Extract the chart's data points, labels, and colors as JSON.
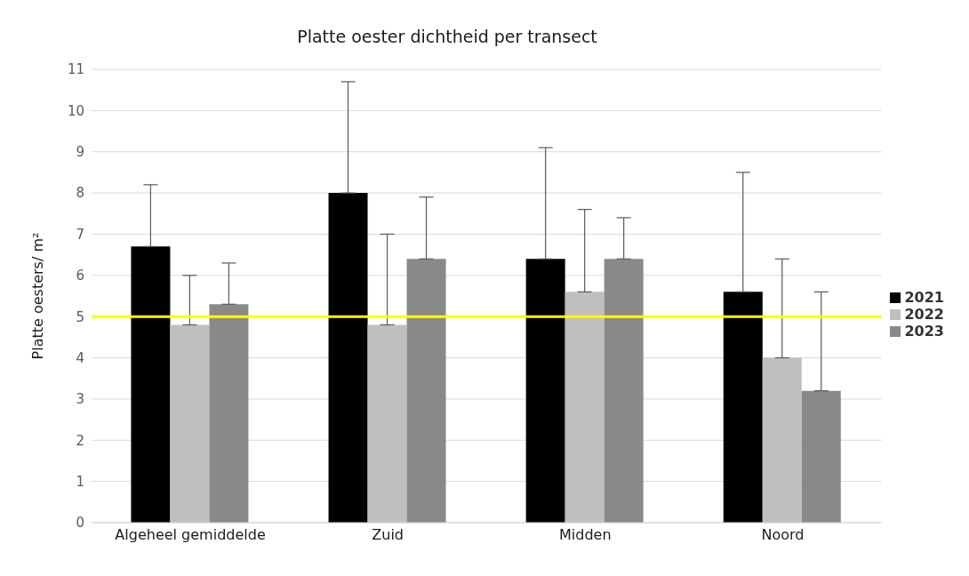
{
  "chart_data": {
    "type": "bar",
    "title": "Platte oester dichtheid per transect",
    "ylabel": "Platte oesters/ m²",
    "categories": [
      "Algeheel gemiddelde",
      "Zuid",
      "Midden",
      "Noord"
    ],
    "series": [
      {
        "name": "2021",
        "color": "#000000",
        "values": [
          6.7,
          8.0,
          6.4,
          5.6
        ],
        "errors": [
          [
            6.7,
            8.2
          ],
          [
            8.0,
            10.7
          ],
          [
            6.4,
            9.1
          ],
          [
            5.6,
            8.5
          ]
        ]
      },
      {
        "name": "2022",
        "color": "#bfbfbf",
        "values": [
          4.8,
          4.8,
          5.6,
          4.0
        ],
        "errors": [
          [
            4.8,
            6.0
          ],
          [
            4.8,
            7.0
          ],
          [
            5.6,
            7.6
          ],
          [
            4.0,
            6.4
          ]
        ]
      },
      {
        "name": "2023",
        "color": "#898989",
        "values": [
          5.3,
          6.4,
          6.4,
          3.2
        ],
        "errors": [
          [
            5.3,
            6.3
          ],
          [
            6.4,
            7.9
          ],
          [
            6.4,
            7.4
          ],
          [
            3.2,
            5.6
          ]
        ]
      }
    ],
    "ylim": [
      0,
      11
    ],
    "yticks": [
      0,
      1,
      2,
      3,
      4,
      5,
      6,
      7,
      8,
      9,
      10,
      11
    ],
    "grid": "y",
    "legend": "right",
    "ref_lines": [
      {
        "axis": "y",
        "value": 5,
        "color": "#ffff00"
      }
    ]
  }
}
